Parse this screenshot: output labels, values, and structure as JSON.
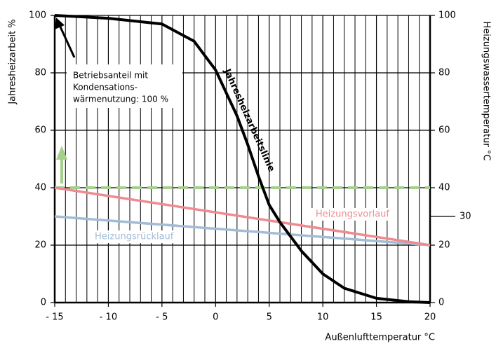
{
  "chart_data": {
    "type": "line",
    "x_label": "Außenlufttemperatur °C",
    "y_label": "Jahresheizarbeit %",
    "y2_label": "Heizungswassertemperatur °C",
    "annotation": [
      "Betriebsanteil mit",
      "Kondensations-",
      "wärmenutzung: 100 %"
    ],
    "xlim": [
      -15,
      20
    ],
    "xticks": [
      {
        "value": -15,
        "label": "- 15"
      },
      {
        "value": -10,
        "label": "- 10"
      },
      {
        "value": -5,
        "label": "- 5"
      },
      0,
      5,
      10,
      15,
      20
    ],
    "x_minor_ticks": [
      -14,
      -13,
      -12,
      -11,
      -9,
      -8,
      -7,
      -6,
      -4,
      -3,
      -2,
      -1,
      1,
      2,
      3,
      4,
      6,
      7,
      8,
      9,
      11,
      12,
      13,
      14,
      16,
      17,
      18,
      19
    ],
    "ylim": [
      0,
      100
    ],
    "yticks": [
      0,
      20,
      40,
      60,
      80,
      100
    ],
    "y2lim": [
      0,
      100
    ],
    "y2ticks": [
      0,
      20,
      30,
      40,
      60,
      80,
      100
    ],
    "grid": true,
    "series": [
      {
        "name": "Jahresheizarbeitslinie",
        "color": "#000000",
        "width": 4,
        "x": [
          -15,
          -10,
          -5,
          -2,
          0,
          2,
          3,
          4,
          5,
          6,
          7,
          8,
          10,
          12,
          15,
          18,
          20
        ],
        "values": [
          100,
          99,
          97,
          91,
          81,
          65,
          55,
          44,
          34,
          28,
          23,
          18,
          10,
          5,
          1.5,
          0.3,
          0
        ]
      },
      {
        "name": "Heizungsvorlauf",
        "color": "#ee8a90",
        "width": 3.5,
        "axis": "y2",
        "x": [
          -15,
          20
        ],
        "values": [
          40,
          20
        ]
      },
      {
        "name": "Heizungsrücklauf",
        "color": "#a3bcd6",
        "width": 3.5,
        "axis": "y2",
        "x": [
          -15,
          20
        ],
        "values": [
          30,
          20
        ]
      },
      {
        "color": "#a5cf8c",
        "width": 4,
        "dashed": true,
        "axis": "y2",
        "x": [
          -15,
          20
        ],
        "values": [
          40,
          40
        ]
      }
    ]
  }
}
